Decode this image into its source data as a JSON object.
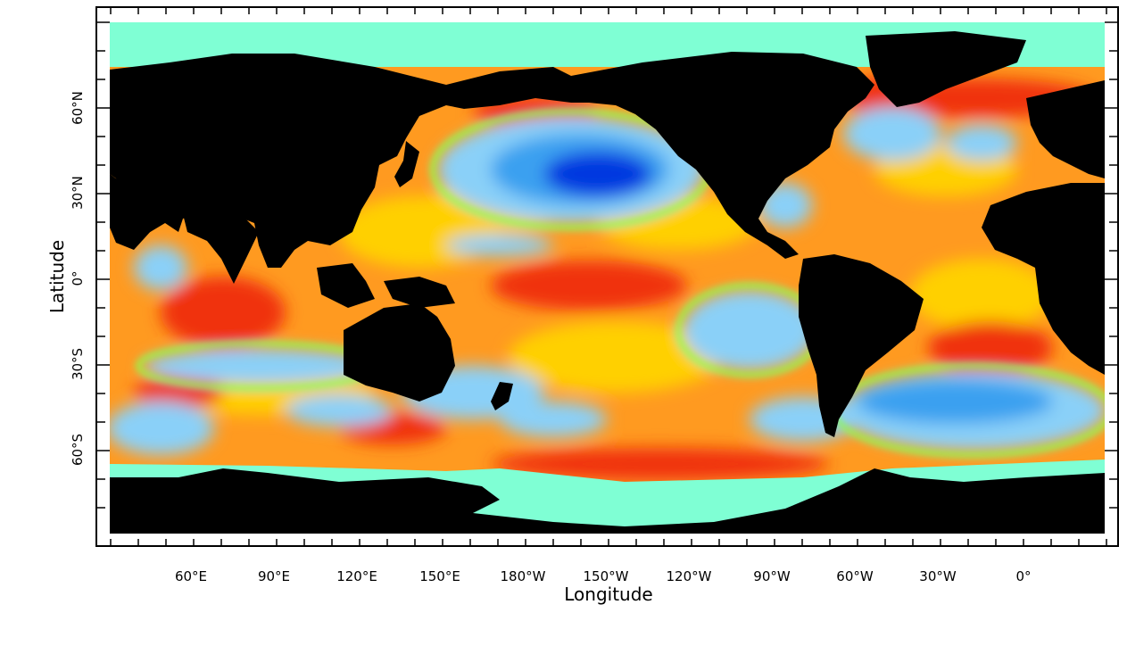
{
  "map": {
    "xlabel": "Longitude",
    "ylabel": "Latitude",
    "x_ticks": [
      "60°E",
      "90°E",
      "120°E",
      "150°E",
      "180°W",
      "150°W",
      "120°W",
      "90°W",
      "60°W",
      "30°W",
      "0°"
    ],
    "y_ticks": [
      "60°N",
      "30°N",
      "0°",
      "30°S",
      "60°S"
    ],
    "colors": {
      "land": "#000000",
      "sea_ice": "#7fffd4",
      "deep_blue": "#0038e0",
      "blue": "#3aa0f0",
      "light_blue": "#8ad0f8",
      "green": "#90ff40",
      "yellow": "#ffd000",
      "orange": "#ff9a20",
      "red": "#f03010",
      "frame": "#000000"
    }
  }
}
